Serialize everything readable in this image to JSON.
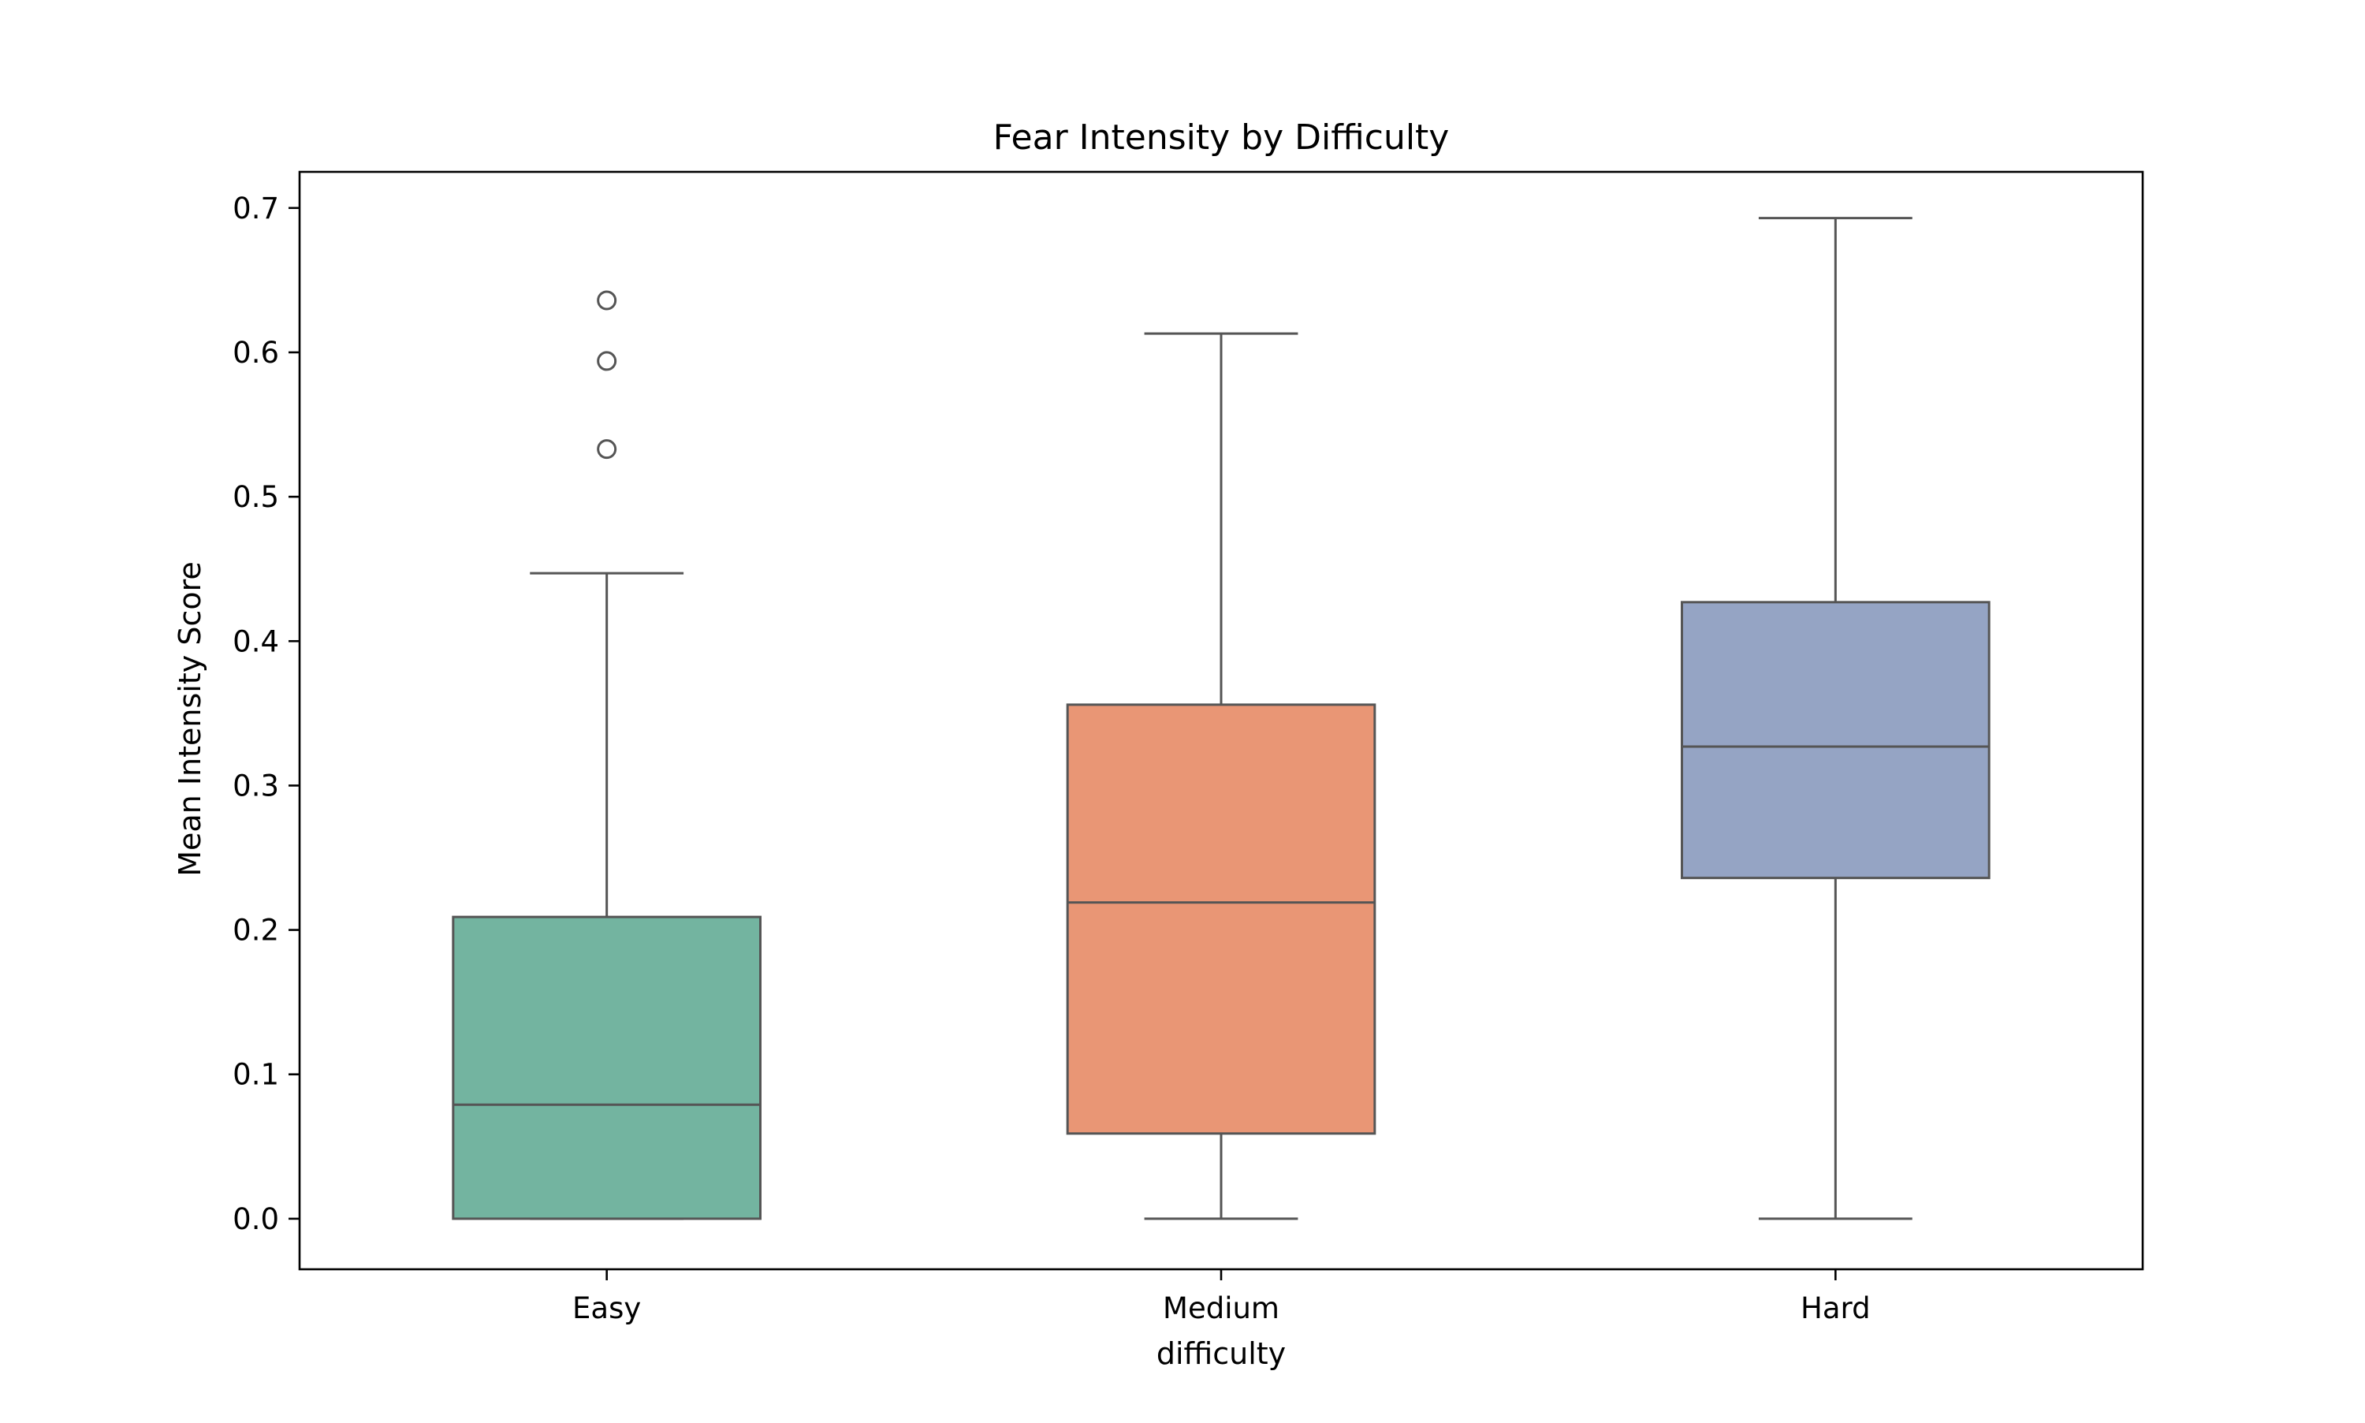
{
  "chart_data": {
    "type": "box",
    "title": "Fear Intensity by Difficulty",
    "xlabel": "difficulty",
    "ylabel": "Mean Intensity Score",
    "ylim": [
      -0.035,
      0.725
    ],
    "yticks": [
      "0.0",
      "0.1",
      "0.2",
      "0.3",
      "0.4",
      "0.5",
      "0.6",
      "0.7"
    ],
    "categories": [
      "Easy",
      "Medium",
      "Hard"
    ],
    "boxes": [
      {
        "category": "Easy",
        "whisker_low": 0.0,
        "q1": 0.0,
        "median": 0.079,
        "q3": 0.209,
        "whisker_high": 0.447,
        "outliers": [
          0.533,
          0.594,
          0.636
        ],
        "color": "#73b4a0"
      },
      {
        "category": "Medium",
        "whisker_low": 0.0,
        "q1": 0.059,
        "median": 0.219,
        "q3": 0.356,
        "whisker_high": 0.613,
        "outliers": [],
        "color": "#e99675"
      },
      {
        "category": "Hard",
        "whisker_low": 0.0,
        "q1": 0.236,
        "median": 0.327,
        "q3": 0.427,
        "whisker_high": 0.693,
        "outliers": [],
        "color": "#95a4c4"
      }
    ],
    "grid": false,
    "legend": "none"
  }
}
